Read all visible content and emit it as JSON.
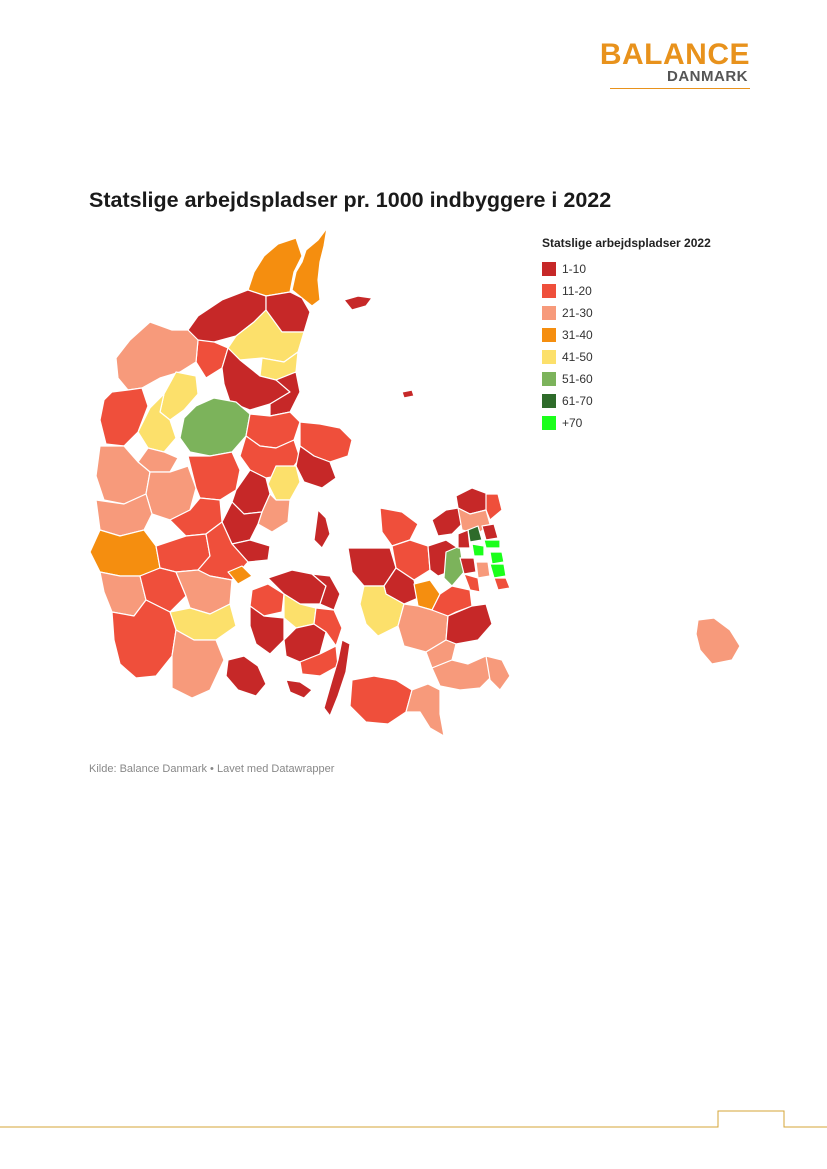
{
  "brand": {
    "name": "BALANCE",
    "sub": "DANMARK"
  },
  "map": {
    "title": "Statslige arbejdspladser pr. 1000 indbyggere i 2022",
    "source": "Kilde: Balance Danmark • Lavet med Datawrapper"
  },
  "legend": {
    "title": "Statslige arbejdspladser 2022",
    "items": [
      {
        "label": "1-10",
        "color": "#C62828"
      },
      {
        "label": "11-20",
        "color": "#EF4F3B"
      },
      {
        "label": "21-30",
        "color": "#F79A7B"
      },
      {
        "label": "31-40",
        "color": "#F58E0F"
      },
      {
        "label": "41-50",
        "color": "#FCE06B"
      },
      {
        "label": "51-60",
        "color": "#7CB35B"
      },
      {
        "label": "61-70",
        "color": "#2E6B2A"
      },
      {
        "label": "+70",
        "color": "#1BFF1B"
      }
    ]
  },
  "colors": {
    "accent": "#E8921C",
    "border": "#ffffff"
  }
}
